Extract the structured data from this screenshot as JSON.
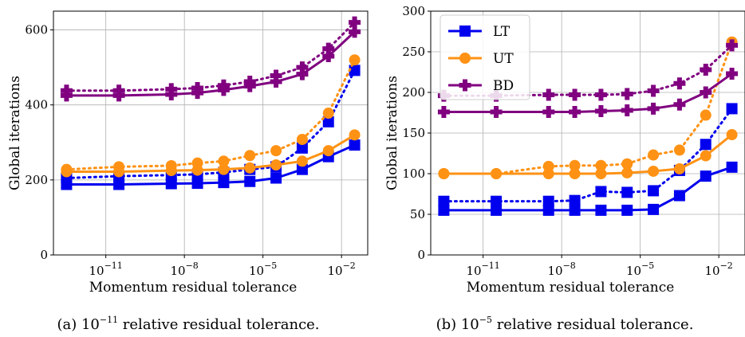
{
  "chart_data": [
    {
      "type": "line",
      "panel": "a",
      "caption_prefix": "(a) ",
      "caption_base": "10",
      "caption_exp": "−11",
      "caption_suffix": " relative residual tolerance.",
      "xlabel": "Momentum residual tolerance",
      "ylabel": "Global iterations",
      "xscale": "log",
      "xlim_exp": [
        -13,
        -1
      ],
      "ylim": [
        0,
        650
      ],
      "yticks": [
        "0",
        "200",
        "400",
        "600"
      ],
      "ytick_values": [
        0,
        200,
        400,
        600
      ],
      "xticks_base": "10",
      "xticks_exp": [
        "−11",
        "−8",
        "−5",
        "−2"
      ],
      "xtick_values": [
        -11,
        -8,
        -5,
        -2
      ],
      "grid": true,
      "x_exp": [
        -12.5,
        -10.5,
        -8.5,
        -7.5,
        -6.5,
        -5.5,
        -4.5,
        -3.5,
        -2.5,
        -1.5
      ],
      "series": [
        {
          "legend": "LT",
          "color": "#0000ee",
          "marker": "square",
          "style": "solid",
          "values": [
            188,
            188,
            190,
            191,
            193,
            196,
            205,
            228,
            262,
            293
          ]
        },
        {
          "legend": "LT",
          "color": "#0000ee",
          "marker": "square",
          "style": "dotted",
          "values": [
            205,
            210,
            213,
            215,
            220,
            228,
            235,
            285,
            355,
            492
          ]
        },
        {
          "legend": "UT",
          "color": "#ff9214",
          "marker": "circle",
          "style": "solid",
          "values": [
            222,
            222,
            225,
            226,
            228,
            232,
            240,
            250,
            278,
            320
          ]
        },
        {
          "legend": "UT",
          "color": "#ff9214",
          "marker": "circle",
          "style": "dotted",
          "values": [
            228,
            235,
            238,
            245,
            250,
            265,
            278,
            308,
            378,
            520
          ]
        },
        {
          "legend": "BD",
          "color": "#800080",
          "marker": "plus",
          "style": "solid",
          "values": [
            425,
            425,
            428,
            432,
            440,
            450,
            462,
            482,
            530,
            595
          ]
        },
        {
          "legend": "BD",
          "color": "#800080",
          "marker": "plus",
          "style": "dotted",
          "values": [
            438,
            438,
            442,
            445,
            452,
            462,
            478,
            500,
            550,
            620
          ]
        }
      ]
    },
    {
      "type": "line",
      "panel": "b",
      "caption_prefix": "(b) ",
      "caption_base": "10",
      "caption_exp": "−5",
      "caption_suffix": " relative residual tolerance.",
      "xlabel": "Momentum residual tolerance",
      "ylabel": "Global iterations",
      "xscale": "log",
      "xlim_exp": [
        -13,
        -1
      ],
      "ylim": [
        0,
        300
      ],
      "yticks": [
        "0",
        "50",
        "100",
        "150",
        "200",
        "250",
        "300"
      ],
      "ytick_values": [
        0,
        50,
        100,
        150,
        200,
        250,
        300
      ],
      "xticks_base": "10",
      "xticks_exp": [
        "−11",
        "−8",
        "−5",
        "−2"
      ],
      "xtick_values": [
        -11,
        -8,
        -5,
        -2
      ],
      "grid": true,
      "legend_position": "top-left",
      "legend": [
        "LT",
        "UT",
        "BD"
      ],
      "x_exp": [
        -12.5,
        -10.5,
        -8.5,
        -7.5,
        -6.5,
        -5.5,
        -4.5,
        -3.5,
        -2.5,
        -1.5
      ],
      "series": [
        {
          "legend": "LT",
          "color": "#0000ee",
          "marker": "square",
          "style": "solid",
          "values": [
            55,
            55,
            55,
            55,
            55,
            55,
            56,
            73,
            97,
            108
          ]
        },
        {
          "legend": "LT",
          "color": "#0000ee",
          "marker": "square",
          "style": "dotted",
          "values": [
            66,
            66,
            66,
            67,
            78,
            77,
            79,
            104,
            136,
            180
          ]
        },
        {
          "legend": "UT",
          "color": "#ff9214",
          "marker": "circle",
          "style": "solid",
          "values": [
            100,
            100,
            100,
            100,
            100,
            101,
            103,
            106,
            122,
            148
          ]
        },
        {
          "legend": "UT",
          "color": "#ff9214",
          "marker": "circle",
          "style": "dotted",
          "values": [
            100,
            100,
            109,
            110,
            110,
            112,
            123,
            129,
            172,
            262
          ]
        },
        {
          "legend": "BD",
          "color": "#800080",
          "marker": "plus",
          "style": "solid",
          "values": [
            176,
            176,
            176,
            176,
            177,
            178,
            180,
            185,
            200,
            223
          ]
        },
        {
          "legend": "BD",
          "color": "#800080",
          "marker": "plus",
          "style": "dotted",
          "values": [
            196,
            196,
            197,
            197,
            197,
            198,
            202,
            211,
            228,
            258
          ]
        }
      ]
    }
  ]
}
